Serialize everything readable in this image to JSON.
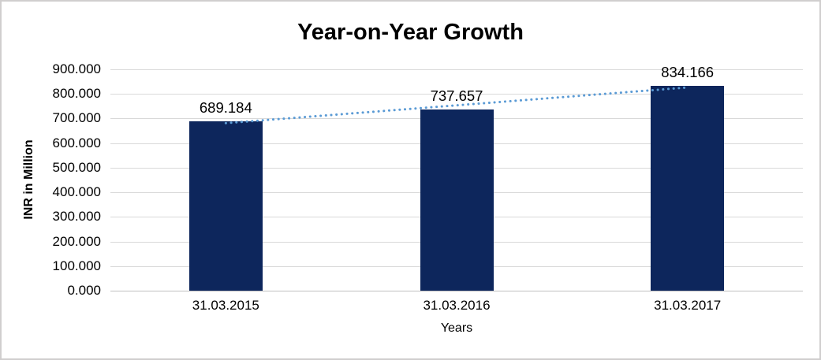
{
  "frame": {
    "background_color": "#FFFFFF",
    "border_color": "#D0CECE"
  },
  "chart_data": {
    "type": "bar",
    "title": "Year-on-Year Growth",
    "xlabel": "Years",
    "ylabel": "INR in Million",
    "categories": [
      "31.03.2015",
      "31.03.2016",
      "31.03.2017"
    ],
    "values": [
      689.184,
      737.657,
      834.166
    ],
    "value_labels": [
      "689.184",
      "737.657",
      "834.166"
    ],
    "ylim": [
      0,
      900
    ],
    "ytick_values": [
      0,
      100,
      200,
      300,
      400,
      500,
      600,
      700,
      800,
      900
    ],
    "ytick_labels": [
      "0.000",
      "100.000",
      "200.000",
      "300.000",
      "400.000",
      "500.000",
      "600.000",
      "700.000",
      "800.000",
      "900.000"
    ],
    "grid": true,
    "legend_position": "none",
    "bar_color": "#0D265C",
    "gridline_color": "#D9D9D9",
    "axis_line_color": "#BFBFBF",
    "text_color": "#000000",
    "trendline": {
      "type": "linear",
      "style": "dotted",
      "color": "#5B9BD5"
    }
  }
}
